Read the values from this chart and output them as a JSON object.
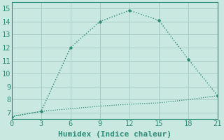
{
  "xlabel": "Humidex (Indice chaleur)",
  "ylabel": "",
  "line1_x": [
    0,
    3,
    6,
    9,
    12,
    15,
    18,
    21
  ],
  "line1_y": [
    6.7,
    7.1,
    12.0,
    14.0,
    14.85,
    14.1,
    11.1,
    8.3
  ],
  "line2_x": [
    0,
    3,
    6,
    9,
    12,
    15,
    18,
    21
  ],
  "line2_y": [
    6.7,
    7.1,
    7.3,
    7.5,
    7.65,
    7.75,
    8.0,
    8.3
  ],
  "line_color": "#2e8b77",
  "background_color": "#c8e8e0",
  "grid_color": "#a8ccc4",
  "xlim": [
    0,
    21
  ],
  "ylim": [
    6.5,
    15.5
  ],
  "xticks": [
    0,
    3,
    6,
    9,
    12,
    15,
    18,
    21
  ],
  "yticks": [
    7,
    8,
    9,
    10,
    11,
    12,
    13,
    14,
    15
  ],
  "xlabel_fontsize": 8,
  "tick_fontsize": 7.5
}
